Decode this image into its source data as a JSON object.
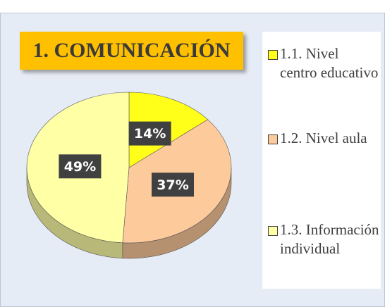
{
  "chart_data": {
    "type": "pie",
    "title": "1. COMUNICACIÓN",
    "categories": [
      "1.1. Nivel centro educativo",
      "1.2. Nivel aula",
      "1.3. Información individual"
    ],
    "values": [
      14,
      37,
      49
    ],
    "value_labels": [
      "14%",
      "37%",
      "49%"
    ],
    "colors": [
      "#ffff1a",
      "#fdca9c",
      "#ffffa6"
    ],
    "legend": "right"
  }
}
